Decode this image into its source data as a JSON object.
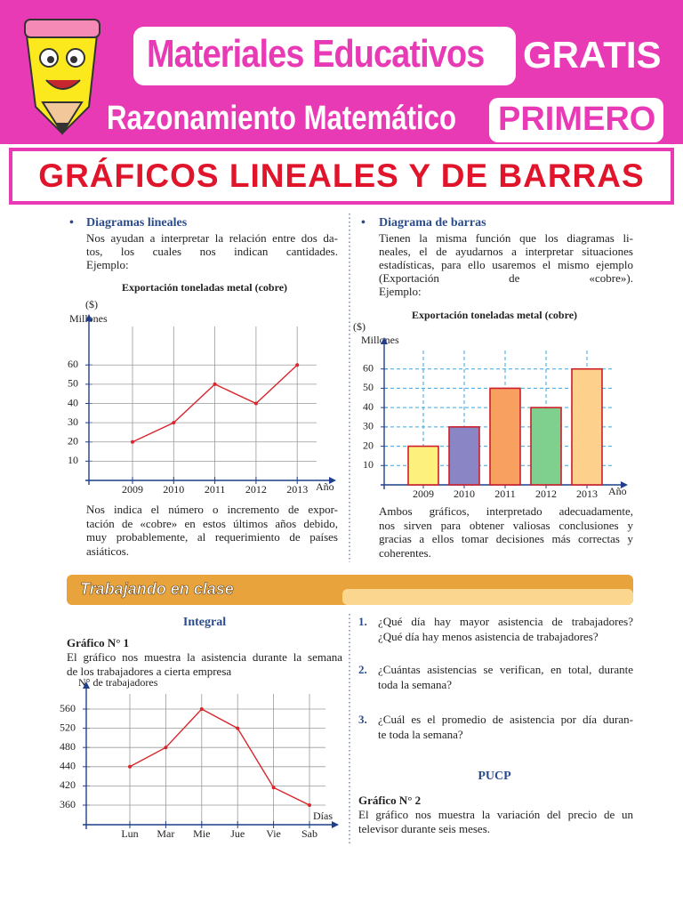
{
  "header": {
    "brand": "Materiales Educativos",
    "badge": "GRATIS",
    "subject": "Razonamiento Matemático",
    "grade": "PRIMERO",
    "title": "GRÁFICOS LINEALES Y DE BARRAS"
  },
  "left": {
    "heading": "Diagramas lineales",
    "lines": [
      "Nos ayudan a interpretar la relación entre dos da-",
      "tos, los cuales nos indican cantidades.",
      "Ejemplo:"
    ],
    "note_lines": [
      "Nos indica el número o incremento de expor-",
      "tación de «cobre» en estos últimos años debido,",
      "muy probablemente, al requerimiento de países",
      "asiáticos."
    ]
  },
  "right": {
    "heading": "Diagrama de barras",
    "lines": [
      "Tienen la misma función que los diagramas li-",
      "neales, el de ayudarnos a interpretar situaciones",
      "estadísticas, para ello usaremos el mismo ejemplo",
      "(Exportación de «cobre»).",
      "Ejemplo:"
    ],
    "note_lines": [
      "Ambos gráficos, interpretado adecuadamente,",
      "nos sirven para obtener valiosas conclusiones y",
      "gracias a ellos tomar decisiones más correctas y",
      "coherentes."
    ]
  },
  "section": "Trabajando en clase",
  "class_left": {
    "level": "Integral",
    "graph_title": "Gráfico N° 1",
    "lines": [
      "El gráfico nos muestra la asistencia durante la semana",
      "de los trabajadores a cierta empresa"
    ]
  },
  "questions": [
    {
      "number": "1.",
      "lines": [
        "¿Qué día hay mayor asistencia de trabajadores?",
        "¿Qué día hay menos asistencia de trabajadores?"
      ]
    },
    {
      "number": "2.",
      "lines": [
        "¿Cuántas asistencias se verifican, en total, durante",
        "toda la semana?"
      ]
    },
    {
      "number": "3.",
      "lines": [
        "¿Cuál es el promedio de asistencia por día duran-",
        "te toda la semana?"
      ]
    }
  ],
  "class_right": {
    "level": "PUCP",
    "graph_title": "Gráfico N° 2",
    "lines": [
      "El gráfico nos muestra la variación del precio de un",
      "televisor durante seis meses."
    ]
  },
  "chart_data": [
    {
      "type": "line",
      "title": "Exportación toneladas metal (cobre)",
      "y_unit": "($)",
      "y_label": "Millones",
      "x_label": "Año",
      "categories": [
        "2009",
        "2010",
        "2011",
        "2012",
        "2013"
      ],
      "values": [
        20,
        30,
        50,
        40,
        60
      ],
      "color": "#d9262c",
      "ylim": [
        0,
        80
      ],
      "yticks": [
        10,
        20,
        30,
        40,
        50,
        60
      ],
      "grid": true
    },
    {
      "type": "bar",
      "title": "Exportación toneladas metal (cobre)",
      "y_unit": "($)",
      "y_label": "Millones",
      "x_label": "Año",
      "categories": [
        "2009",
        "2010",
        "2011",
        "2012",
        "2013"
      ],
      "values": [
        20,
        30,
        50,
        40,
        60
      ],
      "colors": [
        "#fdf07c",
        "#8a85c4",
        "#f8a060",
        "#7fcf8e",
        "#fdd18c"
      ],
      "edge_color": "#cc1f2a",
      "ylim": [
        0,
        70
      ],
      "yticks": [
        10,
        20,
        30,
        40,
        50,
        60
      ],
      "grid": true
    },
    {
      "type": "line",
      "y_label": "N° de trabajadores",
      "x_label": "Días",
      "categories": [
        "Lun",
        "Mar",
        "Mie",
        "Jue",
        "Vie",
        "Sab"
      ],
      "values": [
        440,
        480,
        560,
        520,
        415,
        360
      ],
      "color": "#d9262c",
      "yticks": [
        360,
        420,
        440,
        480,
        520,
        560
      ],
      "grid": true
    }
  ]
}
